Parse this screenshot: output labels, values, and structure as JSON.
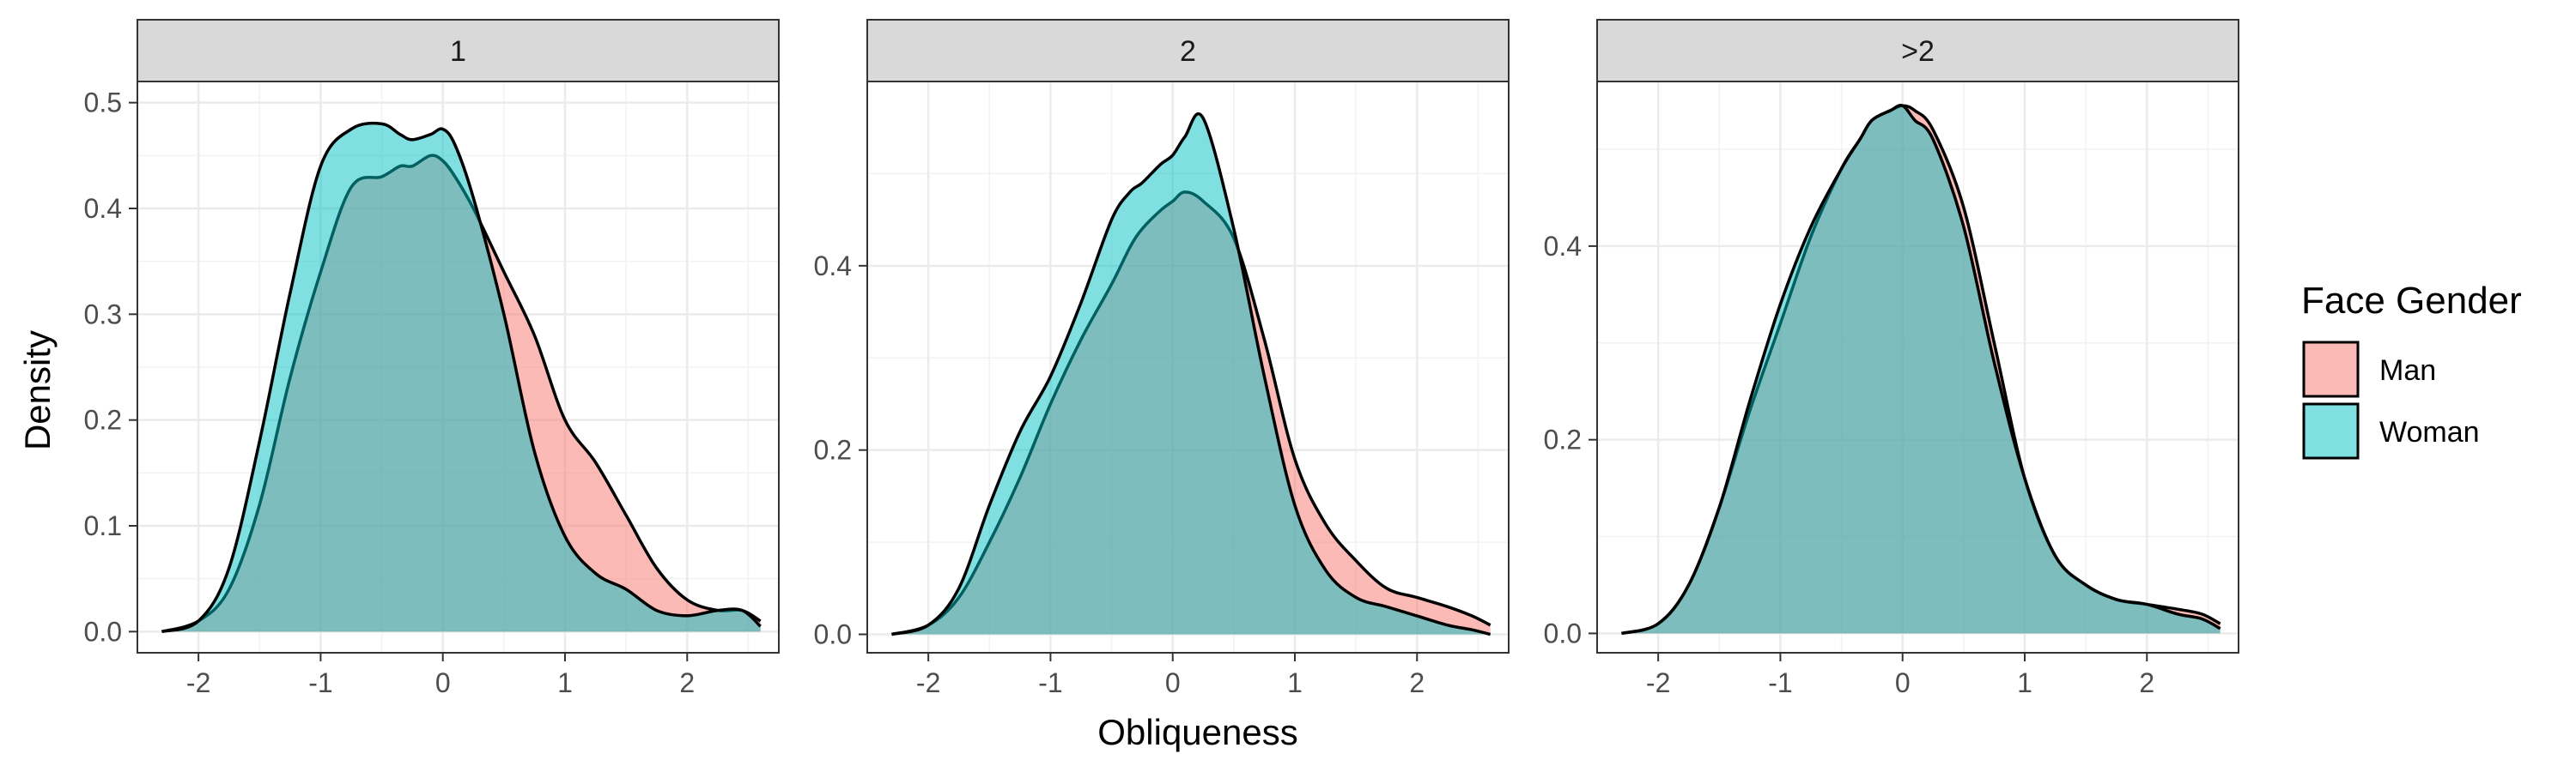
{
  "chart_data": {
    "type": "area",
    "xlabel": "Obliqueness",
    "ylabel": "Density",
    "legend": {
      "title": "Face Gender",
      "placement": "right",
      "entries": [
        "Man",
        "Woman"
      ]
    },
    "colors": {
      "Man": "#F8766D",
      "Woman": "#00BFC4",
      "overlap": "#7FBFBF"
    },
    "grid": true,
    "xlim": [
      -2.5,
      2.75
    ],
    "x_ticks": [
      "-2",
      "-1",
      "0",
      "1",
      "2"
    ],
    "x_values": [
      -2.3,
      -2.0,
      -1.75,
      -1.5,
      -1.25,
      -1.0,
      -0.75,
      -0.5,
      -0.35,
      -0.25,
      -0.1,
      0.0,
      0.1,
      0.25,
      0.5,
      0.75,
      1.0,
      1.25,
      1.5,
      1.75,
      2.0,
      2.25,
      2.45,
      2.6
    ],
    "panels": [
      {
        "strip": "1",
        "ylim": [
          -0.02,
          0.52
        ],
        "y_ticks": [
          "0.0",
          "0.1",
          "0.2",
          "0.3",
          "0.4",
          "0.5"
        ],
        "y_tick_values": [
          0.0,
          0.1,
          0.2,
          0.3,
          0.4,
          0.5
        ],
        "series": [
          {
            "name": "Man",
            "values": [
              0.0,
              0.01,
              0.04,
              0.12,
              0.24,
              0.34,
              0.42,
              0.43,
              0.44,
              0.44,
              0.45,
              0.445,
              0.43,
              0.4,
              0.34,
              0.28,
              0.2,
              0.16,
              0.11,
              0.06,
              0.03,
              0.02,
              0.02,
              0.01
            ]
          },
          {
            "name": "Woman",
            "values": [
              0.0,
              0.01,
              0.06,
              0.18,
              0.32,
              0.44,
              0.475,
              0.48,
              0.47,
              0.465,
              0.47,
              0.475,
              0.46,
              0.41,
              0.3,
              0.17,
              0.09,
              0.055,
              0.04,
              0.02,
              0.015,
              0.02,
              0.02,
              0.005
            ]
          }
        ]
      },
      {
        "strip": "2",
        "ylim": [
          -0.02,
          0.6
        ],
        "y_ticks": [
          "0.0",
          "0.2",
          "0.4"
        ],
        "y_tick_values": [
          0.0,
          0.2,
          0.4
        ],
        "series": [
          {
            "name": "Man",
            "values": [
              0.0,
              0.01,
              0.04,
              0.1,
              0.17,
              0.25,
              0.32,
              0.38,
              0.42,
              0.44,
              0.46,
              0.47,
              0.48,
              0.47,
              0.43,
              0.32,
              0.19,
              0.12,
              0.08,
              0.05,
              0.04,
              0.03,
              0.02,
              0.01
            ]
          },
          {
            "name": "Woman",
            "values": [
              0.0,
              0.01,
              0.05,
              0.14,
              0.22,
              0.28,
              0.36,
              0.45,
              0.48,
              0.49,
              0.51,
              0.52,
              0.54,
              0.56,
              0.44,
              0.28,
              0.14,
              0.07,
              0.04,
              0.03,
              0.02,
              0.01,
              0.005,
              0.0
            ]
          }
        ]
      },
      {
        "strip": ">2",
        "ylim": [
          -0.02,
          0.57
        ],
        "y_ticks": [
          "0.0",
          "0.2",
          "0.4"
        ],
        "y_tick_values": [
          0.0,
          0.2,
          0.4
        ],
        "series": [
          {
            "name": "Man",
            "values": [
              0.0,
              0.01,
              0.05,
              0.13,
              0.23,
              0.32,
              0.41,
              0.48,
              0.51,
              0.53,
              0.54,
              0.545,
              0.54,
              0.52,
              0.44,
              0.3,
              0.16,
              0.08,
              0.05,
              0.035,
              0.03,
              0.025,
              0.02,
              0.01
            ]
          },
          {
            "name": "Woman",
            "values": [
              0.0,
              0.01,
              0.05,
              0.13,
              0.24,
              0.34,
              0.42,
              0.48,
              0.51,
              0.53,
              0.54,
              0.545,
              0.53,
              0.51,
              0.42,
              0.28,
              0.16,
              0.08,
              0.05,
              0.035,
              0.03,
              0.02,
              0.015,
              0.005
            ]
          }
        ]
      }
    ]
  }
}
